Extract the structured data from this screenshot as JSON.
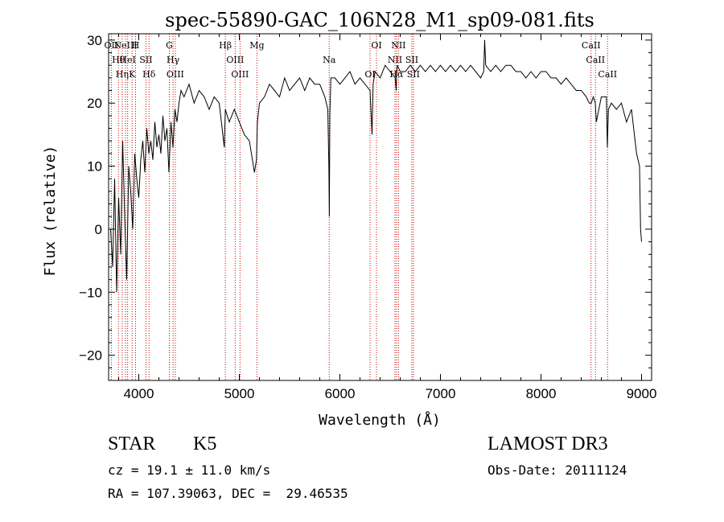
{
  "chart_data": {
    "type": "line",
    "title": "spec-55890-GAC_106N28_M1_sp09-081.fits",
    "xlabel": "Wavelength (Å)",
    "ylabel": "Flux (relative)",
    "xlim": [
      3700,
      9100
    ],
    "ylim": [
      -24,
      31
    ],
    "xticks": [
      4000,
      5000,
      6000,
      7000,
      8000,
      9000
    ],
    "xtick_labels": [
      "4000",
      "5000",
      "6000",
      "7000",
      "8000",
      "9000"
    ],
    "yticks": [
      -20,
      -10,
      0,
      10,
      20,
      30
    ],
    "ytick_labels": [
      "−20",
      "−10",
      "0",
      "10",
      "20",
      "30"
    ],
    "series": [
      {
        "name": "flux",
        "color": "#000000",
        "x": [
          3720,
          3740,
          3760,
          3780,
          3800,
          3820,
          3840,
          3860,
          3880,
          3900,
          3920,
          3940,
          3960,
          3980,
          4000,
          4020,
          4040,
          4060,
          4080,
          4100,
          4120,
          4140,
          4160,
          4180,
          4200,
          4220,
          4240,
          4260,
          4280,
          4300,
          4320,
          4340,
          4360,
          4380,
          4400,
          4420,
          4450,
          4500,
          4550,
          4600,
          4650,
          4700,
          4750,
          4800,
          4850,
          4861,
          4880,
          4900,
          4950,
          5000,
          5050,
          5100,
          5150,
          5170,
          5180,
          5200,
          5250,
          5300,
          5350,
          5400,
          5450,
          5500,
          5550,
          5600,
          5650,
          5700,
          5750,
          5800,
          5850,
          5880,
          5890,
          5895,
          5900,
          5910,
          5950,
          6000,
          6050,
          6100,
          6150,
          6200,
          6250,
          6300,
          6320,
          6330,
          6340,
          6350,
          6400,
          6450,
          6500,
          6550,
          6560,
          6563,
          6570,
          6600,
          6650,
          6700,
          6750,
          6800,
          6850,
          6900,
          6950,
          7000,
          7050,
          7100,
          7150,
          7200,
          7250,
          7300,
          7350,
          7400,
          7430,
          7440,
          7450,
          7500,
          7550,
          7600,
          7650,
          7700,
          7750,
          7800,
          7850,
          7900,
          7950,
          8000,
          8050,
          8100,
          8150,
          8200,
          8250,
          8300,
          8350,
          8400,
          8450,
          8480,
          8500,
          8520,
          8540,
          8550,
          8600,
          8650,
          8660,
          8670,
          8700,
          8750,
          8800,
          8850,
          8900,
          8950,
          8980,
          8990,
          9000
        ],
        "y": [
          0,
          -6,
          8,
          -10,
          5,
          -4,
          14,
          2,
          -8,
          10,
          6,
          0,
          12,
          8,
          5,
          11,
          14,
          9,
          16,
          12,
          14,
          11,
          17,
          13,
          15,
          12,
          18,
          14,
          16,
          9,
          17,
          13,
          19,
          17,
          20,
          22,
          21,
          23,
          20,
          22,
          21,
          19,
          21,
          20,
          13,
          19,
          18,
          17,
          19,
          17,
          15,
          14,
          9,
          11,
          17,
          20,
          21,
          23,
          22,
          21,
          24,
          22,
          23,
          24,
          22,
          24,
          23,
          23,
          21,
          19,
          10,
          2,
          18,
          24,
          24,
          23,
          24,
          25,
          23,
          24,
          23,
          22,
          15,
          23,
          24,
          25,
          24,
          26,
          25,
          24,
          22,
          24,
          26,
          25,
          25,
          26,
          25,
          26,
          25,
          26,
          25,
          26,
          25,
          26,
          25,
          26,
          25,
          26,
          25,
          24,
          25,
          30,
          26,
          25,
          26,
          25,
          26,
          26,
          25,
          25,
          24,
          25,
          24,
          25,
          25,
          24,
          24,
          23,
          24,
          23,
          22,
          22,
          21,
          20,
          20,
          21,
          20,
          17,
          21,
          21,
          13,
          19,
          20,
          19,
          20,
          17,
          19,
          12,
          10,
          0,
          -2
        ]
      }
    ],
    "line_markers": [
      {
        "wavelength": 3727,
        "label": "OII"
      },
      {
        "wavelength": 3798,
        "label": "Hθ"
      },
      {
        "wavelength": 3835,
        "label": "Hη"
      },
      {
        "wavelength": 3869,
        "label": "NeIII"
      },
      {
        "wavelength": 3889,
        "label": "HeI"
      },
      {
        "wavelength": 3934,
        "label": "K"
      },
      {
        "wavelength": 3968,
        "label": "H"
      },
      {
        "wavelength": 4072,
        "label": "SII"
      },
      {
        "wavelength": 4102,
        "label": "Hδ"
      },
      {
        "wavelength": 4304,
        "label": "G"
      },
      {
        "wavelength": 4341,
        "label": "Hγ"
      },
      {
        "wavelength": 4363,
        "label": "OIII"
      },
      {
        "wavelength": 4861,
        "label": "Hβ"
      },
      {
        "wavelength": 4959,
        "label": "OIII"
      },
      {
        "wavelength": 5007,
        "label": "OIII"
      },
      {
        "wavelength": 5175,
        "label": "Mg"
      },
      {
        "wavelength": 5894,
        "label": "Na"
      },
      {
        "wavelength": 6300,
        "label": "OI"
      },
      {
        "wavelength": 6364,
        "label": "OI"
      },
      {
        "wavelength": 6548,
        "label": "NII"
      },
      {
        "wavelength": 6563,
        "label": "Hα"
      },
      {
        "wavelength": 6583,
        "label": "NII"
      },
      {
        "wavelength": 6716,
        "label": "SII"
      },
      {
        "wavelength": 6731,
        "label": "SII"
      },
      {
        "wavelength": 8498,
        "label": "CaII"
      },
      {
        "wavelength": 8542,
        "label": "CaII"
      },
      {
        "wavelength": 8662,
        "label": "CaII"
      }
    ],
    "grid": false,
    "legend": "none",
    "marker_color": "#cc0000"
  },
  "info": {
    "object_class": "STAR",
    "subclass": "K5",
    "survey": "LAMOST DR3",
    "cz": "cz = 19.1 ± 11.0 km/s",
    "obs_date": "Obs-Date: 20111124",
    "coords": "RA = 107.39063, DEC =  29.46535"
  }
}
